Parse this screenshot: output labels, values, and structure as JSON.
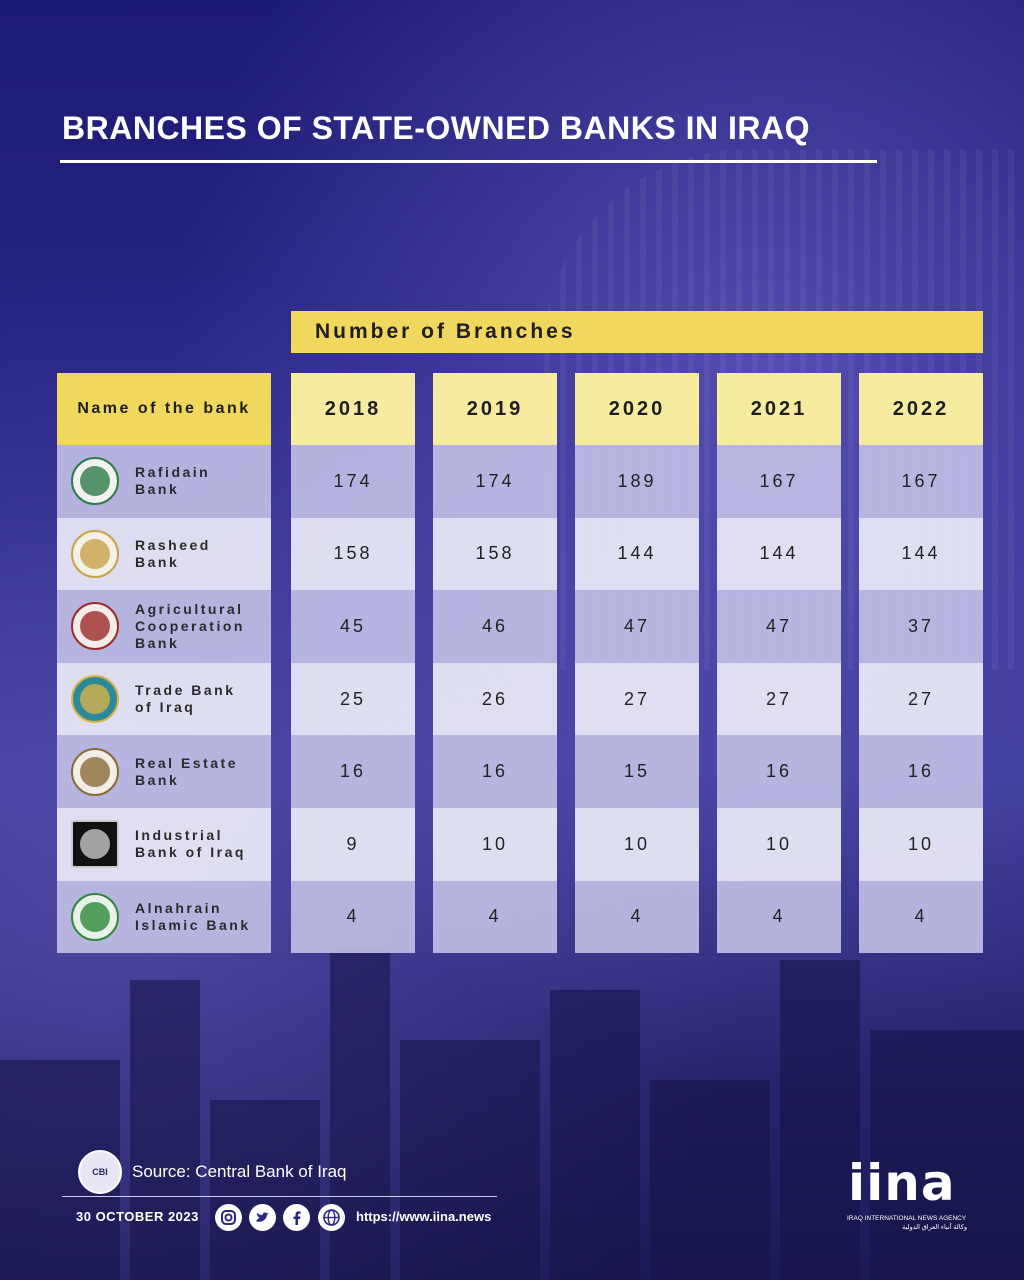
{
  "title": "BRANCHES OF STATE-OWNED BANKS IN IRAQ",
  "header_band": "Number of Branches",
  "table": {
    "name_header": "Name of the bank",
    "years": [
      "2018",
      "2019",
      "2020",
      "2021",
      "2022"
    ],
    "rows": [
      {
        "name": "Rafidain\nBank",
        "logo": "rafidain-logo",
        "values": [
          "174",
          "174",
          "189",
          "167",
          "167"
        ]
      },
      {
        "name": "Rasheed\nBank",
        "logo": "rasheed-logo",
        "values": [
          "158",
          "158",
          "144",
          "144",
          "144"
        ]
      },
      {
        "name": "Agricultural\nCooperation\nBank",
        "logo": "agricultural-logo",
        "values": [
          "45",
          "46",
          "47",
          "47",
          "37"
        ]
      },
      {
        "name": "Trade Bank\nof Iraq",
        "logo": "trade-bank-logo",
        "values": [
          "25",
          "26",
          "27",
          "27",
          "27"
        ]
      },
      {
        "name": "Real Estate\nBank",
        "logo": "real-estate-logo",
        "values": [
          "16",
          "16",
          "15",
          "16",
          "16"
        ]
      },
      {
        "name": "Industrial\nBank of Iraq",
        "logo": "industrial-logo",
        "values": [
          "9",
          "10",
          "10",
          "10",
          "10"
        ]
      },
      {
        "name": "Alnahrain\nIslamic Bank",
        "logo": "alnahrain-logo",
        "values": [
          "4",
          "4",
          "4",
          "4",
          "4"
        ]
      }
    ]
  },
  "chart_data": {
    "type": "table",
    "title": "BRANCHES OF STATE-OWNED BANKS IN IRAQ",
    "subtitle": "Number of Branches",
    "columns": [
      "Name of the bank",
      "2018",
      "2019",
      "2020",
      "2021",
      "2022"
    ],
    "categories": [
      "Rafidain Bank",
      "Rasheed Bank",
      "Agricultural Cooperation Bank",
      "Trade Bank of Iraq",
      "Real Estate Bank",
      "Industrial Bank of Iraq",
      "Alnahrain Islamic Bank"
    ],
    "series": [
      {
        "name": "2018",
        "values": [
          174,
          158,
          45,
          25,
          16,
          9,
          4
        ]
      },
      {
        "name": "2019",
        "values": [
          174,
          158,
          46,
          26,
          16,
          10,
          4
        ]
      },
      {
        "name": "2020",
        "values": [
          189,
          144,
          47,
          27,
          15,
          10,
          4
        ]
      },
      {
        "name": "2021",
        "values": [
          167,
          144,
          47,
          27,
          16,
          10,
          4
        ]
      },
      {
        "name": "2022",
        "values": [
          167,
          144,
          37,
          27,
          16,
          10,
          4
        ]
      }
    ]
  },
  "footer": {
    "seal_text": "CBI",
    "source": "Source: Central Bank of Iraq",
    "date": "30 OCTOBER 2023",
    "social_icons": [
      "instagram-icon",
      "twitter-icon",
      "facebook-icon",
      "globe-icon"
    ],
    "url": "https://www.iina.news",
    "brand": "iina",
    "brand_sub": "IRAQ INTERNATIONAL NEWS AGENCY",
    "brand_sub_ar": "وكالة أنباء العراق الدولية"
  },
  "colors": {
    "background": "#1e1b6e",
    "header_yellow": "#f0d75d",
    "year_header": "#f7eba0",
    "row_dark": "#c6c4e8",
    "row_light": "#ececf8"
  }
}
